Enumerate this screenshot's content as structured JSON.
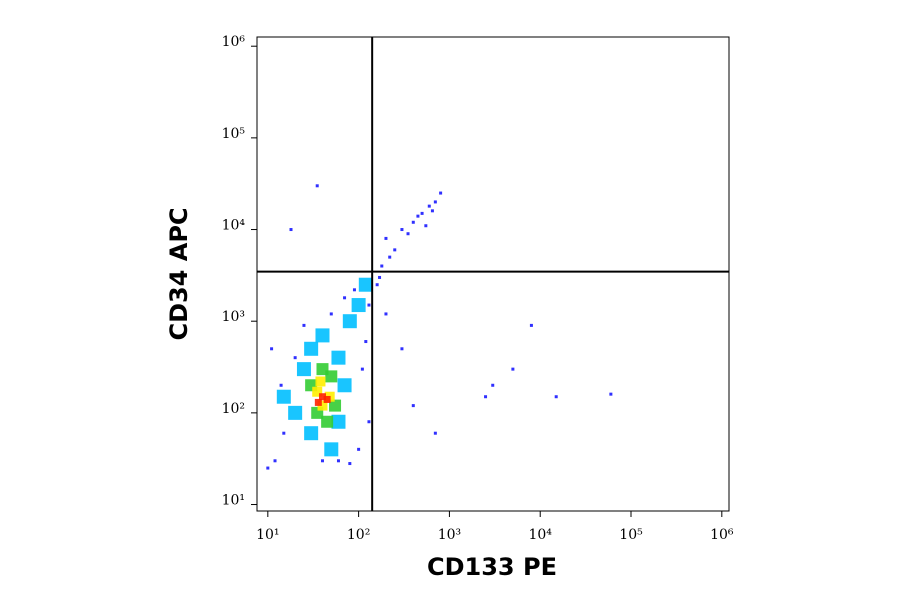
{
  "chart_data": {
    "type": "scatter",
    "x_label": "CD133 PE",
    "y_label": "CD34 APC",
    "log_x": true,
    "log_y": true,
    "xlim": [
      7.6,
      1200000
    ],
    "ylim": [
      8.5,
      1260000
    ],
    "xticks": [
      {
        "value": 10,
        "label": "10¹"
      },
      {
        "value": 100,
        "label": "10²"
      },
      {
        "value": 1000,
        "label": "10³"
      },
      {
        "value": 10000,
        "label": "10⁴"
      },
      {
        "value": 100000,
        "label": "10⁵"
      },
      {
        "value": 1000000,
        "label": "10⁶"
      }
    ],
    "yticks": [
      {
        "value": 10,
        "label": "10¹"
      },
      {
        "value": 100,
        "label": "10²"
      },
      {
        "value": 1000,
        "label": "10³"
      },
      {
        "value": 10000,
        "label": "10⁴"
      },
      {
        "value": 100000,
        "label": "10⁵"
      },
      {
        "value": 1000000,
        "label": "10⁶"
      }
    ],
    "gates": {
      "x": 141,
      "y": 3470,
      "color": "#000000"
    },
    "series": [
      {
        "color": "#1a1aff",
        "marker_size": 3,
        "x": [
          12,
          15,
          20,
          60,
          80,
          100,
          120,
          130,
          90,
          70,
          25,
          14,
          200,
          300,
          400,
          500,
          600,
          700,
          800,
          250,
          350,
          450,
          550,
          650,
          180,
          220,
          160,
          170,
          2500,
          5000,
          8000,
          15000,
          60000,
          3000,
          400,
          700,
          10,
          11,
          50,
          110,
          130,
          40,
          300,
          200,
          35,
          18
        ],
        "values": [
          30,
          60,
          400,
          30,
          28,
          40,
          600,
          1500,
          2200,
          1800,
          900,
          200,
          8000,
          10000,
          12000,
          15000,
          18000,
          20000,
          25000,
          6000,
          9000,
          14000,
          11000,
          16000,
          4000,
          5000,
          2500,
          3000,
          150,
          300,
          900,
          150,
          160,
          200,
          120,
          60,
          25,
          500,
          1200,
          300,
          80,
          30,
          500,
          1200,
          30000,
          10000
        ]
      },
      {
        "color": "#00bfff",
        "marker_size": 14,
        "x": [
          20,
          25,
          30,
          60,
          70,
          60,
          30,
          40,
          80,
          100,
          120,
          15,
          50
        ],
        "values": [
          100,
          300,
          500,
          400,
          200,
          80,
          60,
          700,
          1000,
          1500,
          2500,
          150,
          40
        ]
      },
      {
        "color": "#33cc33",
        "marker_size": 12,
        "x": [
          30,
          50,
          55,
          35,
          45,
          40
        ],
        "values": [
          200,
          250,
          120,
          100,
          80,
          300
        ]
      },
      {
        "color": "#ffee00",
        "marker_size": 10,
        "x": [
          35,
          48,
          40,
          38
        ],
        "values": [
          170,
          150,
          120,
          220
        ]
      },
      {
        "color": "#ff2200",
        "marker_size": 7,
        "x": [
          40,
          45,
          36
        ],
        "values": [
          150,
          140,
          130
        ]
      }
    ]
  }
}
